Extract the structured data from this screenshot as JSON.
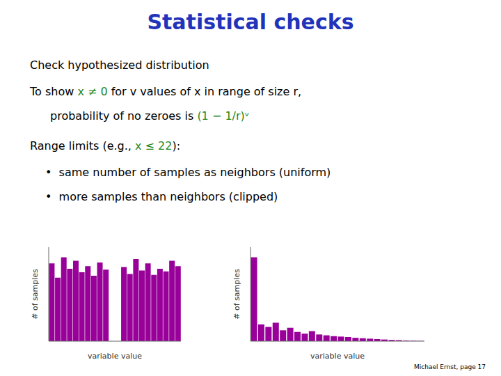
{
  "title": "Statistical checks",
  "title_color": "#2233bb",
  "annotations": [
    [
      {
        "text": "Check hypothesized distribution",
        "color": "#000000"
      }
    ],
    [
      {
        "text": "To show ",
        "color": "#000000"
      },
      {
        "text": "x ≠ 0",
        "color": "#228822"
      },
      {
        "text": " for v values of x in range of size r,",
        "color": "#000000"
      }
    ],
    [
      {
        "text": "probability of no zeroes is ",
        "color": "#000000"
      },
      {
        "text": "(1 − 1/r)ᵛ",
        "color": "#228822"
      }
    ],
    [
      {
        "text": "Range limits (e.g., ",
        "color": "#000000"
      },
      {
        "text": "x ≤ 22",
        "color": "#228822"
      },
      {
        "text": "):",
        "color": "#000000"
      }
    ],
    [
      {
        "text": "•  same number of samples as neighbors (uniform)",
        "color": "#000000"
      }
    ],
    [
      {
        "text": "•  more samples than neighbors (clipped)",
        "color": "#000000"
      }
    ],
    [
      {
        "text": "Michael Ernst, page 17",
        "color": "#000000"
      }
    ]
  ],
  "chart_data": [
    {
      "type": "bar",
      "categories": [
        null,
        null,
        null,
        null,
        null,
        null,
        null,
        null,
        null,
        null,
        null,
        null,
        null,
        null,
        null,
        null,
        null,
        null,
        null,
        null,
        null,
        null
      ],
      "values": [
        0.88,
        0.72,
        0.95,
        0.82,
        0.91,
        0.78,
        0.85,
        0.74,
        0.89,
        0.81,
        0.0,
        0.0,
        0.84,
        0.76,
        0.93,
        0.8,
        0.88,
        0.75,
        0.82,
        0.79,
        0.91,
        0.85
      ],
      "color": "#990099",
      "xlabel": "variable value",
      "ylabel": "# of samples",
      "ylim": [
        0,
        1.064
      ],
      "tick_labels": false
    },
    {
      "type": "bar",
      "categories": [
        null,
        null,
        null,
        null,
        null,
        null,
        null,
        null,
        null,
        null,
        null,
        null,
        null,
        null,
        null,
        null,
        null,
        null,
        null,
        null,
        null,
        null,
        null,
        null
      ],
      "values": [
        1.0,
        0.2,
        0.17,
        0.22,
        0.13,
        0.16,
        0.11,
        0.09,
        0.12,
        0.08,
        0.07,
        0.06,
        0.055,
        0.05,
        0.04,
        0.035,
        0.03,
        0.025,
        0.02,
        0.015,
        0.012,
        0.008,
        0.006,
        0.004
      ],
      "color": "#990099",
      "xlabel": "variable value",
      "ylabel": "# of samples",
      "ylim": [
        0,
        1.12
      ],
      "tick_labels": false
    }
  ]
}
